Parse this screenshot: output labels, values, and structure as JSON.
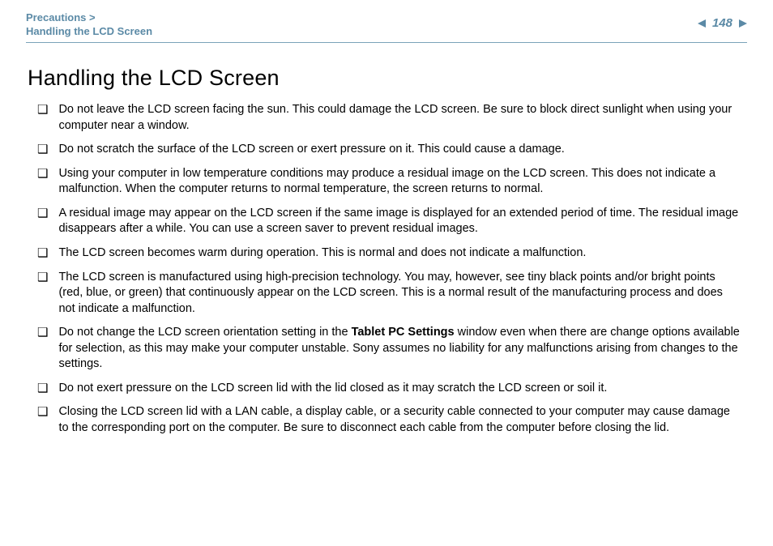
{
  "header": {
    "breadcrumb_parent": "Precautions >",
    "breadcrumb_current": "Handling the LCD Screen",
    "page_number": "148"
  },
  "colors": {
    "accent": "#5b8aa6",
    "text": "#000000",
    "background": "#ffffff",
    "divider": "#7aa3b9"
  },
  "typography": {
    "body_fontsize_pt": 11,
    "title_fontsize_pt": 20,
    "breadcrumb_fontsize_pt": 10,
    "font_family": "Arial"
  },
  "content": {
    "title": "Handling the LCD Screen",
    "bullet_glyph": "❑",
    "items": [
      {
        "text": "Do not leave the LCD screen facing the sun. This could damage the LCD screen. Be sure to block direct sunlight when using your computer near a window."
      },
      {
        "text": "Do not scratch the surface of the LCD screen or exert pressure on it. This could cause a damage."
      },
      {
        "text": "Using your computer in low temperature conditions may produce a residual image on the LCD screen. This does not indicate a malfunction. When the computer returns to normal temperature, the screen returns to normal."
      },
      {
        "text": "A residual image may appear on the LCD screen if the same image is displayed for an extended period of time. The residual image disappears after a while. You can use a screen saver to prevent residual images."
      },
      {
        "text": "The LCD screen becomes warm during operation. This is normal and does not indicate a malfunction."
      },
      {
        "text": "The LCD screen is manufactured using high-precision technology. You may, however, see tiny black points and/or bright points (red, blue, or green) that continuously appear on the LCD screen. This is a normal result of the manufacturing process and does not indicate a malfunction."
      },
      {
        "text_before": "Do not change the LCD screen orientation setting in the ",
        "bold": "Tablet PC Settings",
        "text_after": " window even when there are change options available for selection, as this may make your computer unstable. Sony assumes no liability for any malfunctions arising from changes to the settings."
      },
      {
        "text": "Do not exert pressure on the LCD screen lid with the lid closed as it may scratch the LCD screen or soil it."
      },
      {
        "text": "Closing the LCD screen lid with a LAN cable, a display cable, or a security cable connected to your computer may cause damage to the corresponding port on the computer. Be sure to disconnect each cable from the computer before closing the lid."
      }
    ]
  }
}
